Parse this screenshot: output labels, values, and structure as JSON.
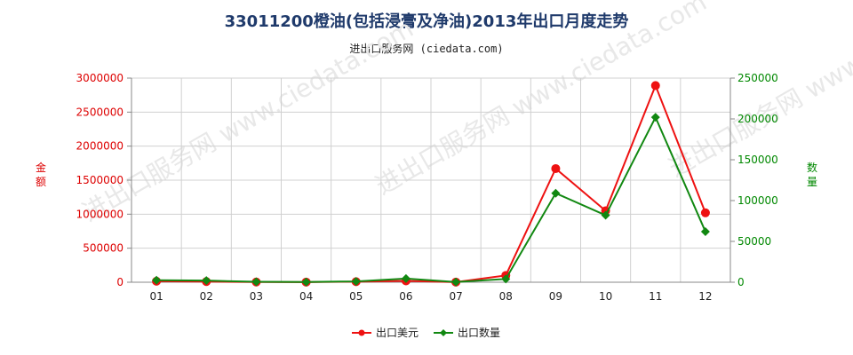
{
  "chart_data": {
    "type": "line",
    "title": "33011200橙油(包括浸膏及净油)2013年出口月度走势",
    "subtitle": "进出口服务网 (ciedata.com)",
    "watermark": "进出口服务网 www.ciedata.com",
    "categories": [
      "01",
      "02",
      "03",
      "04",
      "05",
      "06",
      "07",
      "08",
      "09",
      "10",
      "11",
      "12"
    ],
    "ylabel_left": "金额",
    "ylabel_right": "数量",
    "ylim_left": [
      0,
      3000000
    ],
    "ylim_right": [
      0,
      250000
    ],
    "yticks_left": [
      "0",
      "500000",
      "1000000",
      "1500000",
      "2000000",
      "2500000",
      "3000000"
    ],
    "yticks_right": [
      "0",
      "50000",
      "100000",
      "150000",
      "200000",
      "250000"
    ],
    "grid": true,
    "legend_position": "bottom",
    "series": [
      {
        "name": "出口美元",
        "axis": "left",
        "color": "#ee1111",
        "marker": "circle",
        "values": [
          15000,
          10000,
          3000,
          2000,
          8000,
          20000,
          2000,
          100000,
          1670000,
          1050000,
          2890000,
          1020000
        ]
      },
      {
        "name": "出口数量",
        "axis": "right",
        "color": "#118811",
        "marker": "diamond",
        "values": [
          2500,
          2000,
          500,
          300,
          1000,
          4500,
          300,
          4000,
          109000,
          82000,
          202000,
          62000
        ]
      }
    ],
    "colors": {
      "left_axis": "#dd0000",
      "right_axis": "#008800",
      "grid": "#d0d0d0",
      "title": "#1f3a6b"
    }
  }
}
